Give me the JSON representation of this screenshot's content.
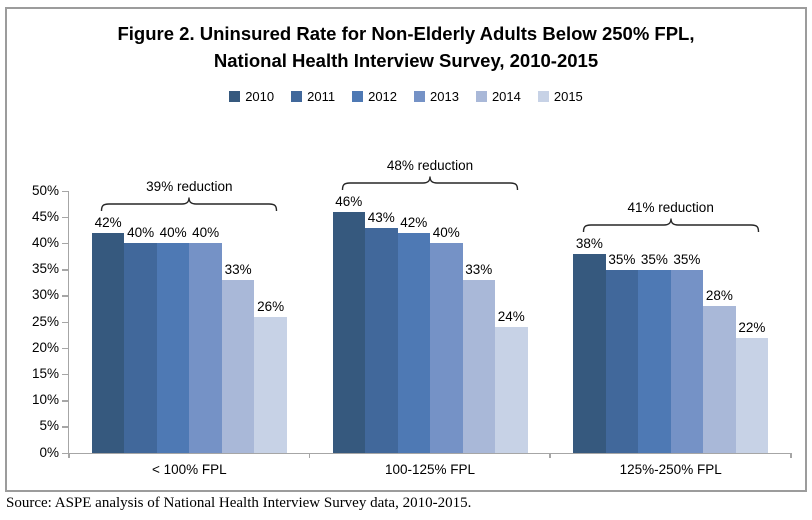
{
  "figure": {
    "title_line1": "Figure 2. Uninsured Rate for Non-Elderly Adults Below 250% FPL,",
    "title_line2": "National Health Interview Survey, 2010-2015",
    "source": "Source: ASPE analysis of National Health Interview Survey data, 2010-2015."
  },
  "chart_data": {
    "type": "bar",
    "title": "Figure 2. Uninsured Rate for Non-Elderly Adults Below 250% FPL, National Health Interview Survey, 2010-2015",
    "xlabel": "",
    "ylabel": "",
    "ylim": [
      0,
      50
    ],
    "yticks": [
      "0%",
      "5%",
      "10%",
      "15%",
      "20%",
      "25%",
      "30%",
      "35%",
      "40%",
      "45%",
      "50%"
    ],
    "grid": false,
    "legend_position": "top",
    "categories": [
      "< 100% FPL",
      "100-125% FPL",
      "125%-250% FPL"
    ],
    "series": [
      {
        "name": "2010",
        "color": "#36597E",
        "values": [
          42,
          46,
          38
        ]
      },
      {
        "name": "2011",
        "color": "#41689B",
        "values": [
          40,
          43,
          35
        ]
      },
      {
        "name": "2012",
        "color": "#4E79B4",
        "values": [
          40,
          42,
          35
        ]
      },
      {
        "name": "2013",
        "color": "#7592C6",
        "values": [
          40,
          40,
          35
        ]
      },
      {
        "name": "2014",
        "color": "#A9B8D8",
        "values": [
          33,
          33,
          28
        ]
      },
      {
        "name": "2015",
        "color": "#C7D2E6",
        "values": [
          26,
          24,
          22
        ]
      }
    ],
    "value_suffix": "%",
    "annotations": [
      {
        "category": "< 100% FPL",
        "label": "39% reduction"
      },
      {
        "category": "100-125% FPL",
        "label": "48% reduction"
      },
      {
        "category": "125%-250% FPL",
        "label": "41% reduction"
      }
    ],
    "axis_color": "#A6A6A6",
    "border_color": "#9C9C9C"
  }
}
